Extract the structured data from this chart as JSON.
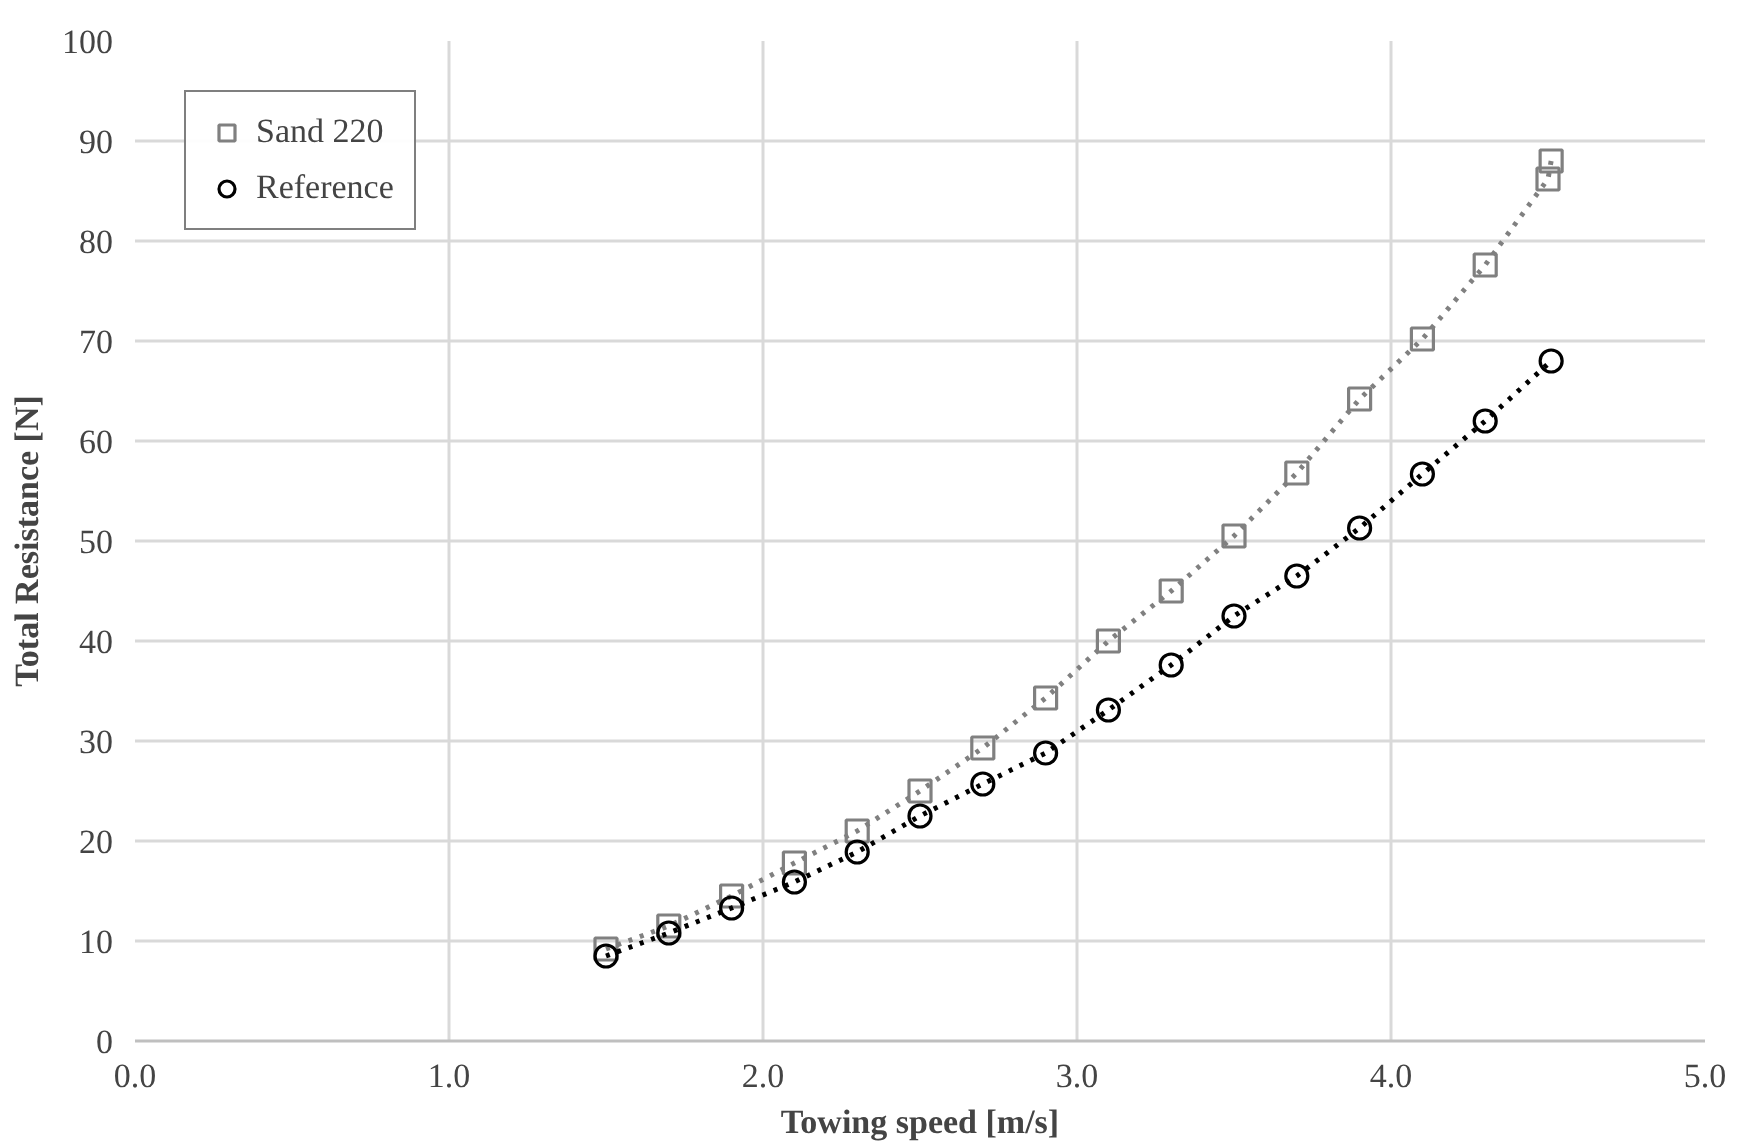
{
  "chart_data": {
    "type": "line",
    "xlabel": "Towing speed [m/s]",
    "ylabel": "Total Resistance [N]",
    "xlim": [
      0,
      5
    ],
    "ylim": [
      0,
      100
    ],
    "xticks": [
      {
        "value": 0,
        "label": "0.0"
      },
      {
        "value": 1,
        "label": "1.0"
      },
      {
        "value": 2,
        "label": "2.0"
      },
      {
        "value": 3,
        "label": "3.0"
      },
      {
        "value": 4,
        "label": "4.0"
      },
      {
        "value": 5,
        "label": "5.0"
      }
    ],
    "yticks": [
      0,
      10,
      20,
      30,
      40,
      50,
      60,
      70,
      80,
      90,
      100
    ],
    "grid": true,
    "legend": "top left",
    "line_style": "dotted",
    "series": [
      {
        "name": "Sand 220",
        "color": "#808080",
        "marker": "square",
        "x": [
          1.5,
          1.7,
          1.9,
          2.1,
          2.3,
          2.5,
          2.7,
          2.9,
          3.1,
          3.3,
          3.5,
          3.7,
          3.9,
          4.1,
          4.3,
          4.5,
          4.51
        ],
        "values": [
          9.2,
          11.5,
          14.5,
          17.8,
          21.0,
          25.0,
          29.3,
          34.3,
          40.0,
          45.0,
          50.5,
          56.8,
          64.2,
          70.2,
          77.6,
          86.2,
          88.0
        ]
      },
      {
        "name": "Reference",
        "color": "#000000",
        "marker": "circle",
        "x": [
          1.5,
          1.7,
          1.9,
          2.1,
          2.3,
          2.5,
          2.7,
          2.9,
          3.1,
          3.3,
          3.5,
          3.7,
          3.9,
          4.1,
          4.3,
          4.51
        ],
        "values": [
          8.5,
          10.8,
          13.3,
          15.9,
          18.9,
          22.5,
          25.7,
          28.8,
          33.1,
          37.6,
          42.5,
          46.5,
          51.3,
          56.7,
          62.0,
          68.0
        ]
      }
    ]
  }
}
